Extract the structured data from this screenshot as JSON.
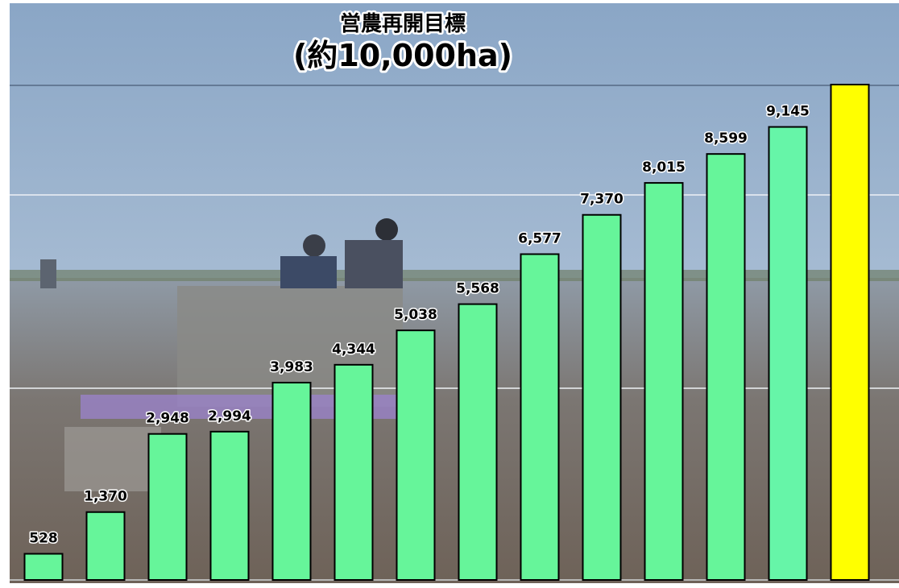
{
  "chart_data": {
    "type": "bar",
    "title": "営農再開目標",
    "subtitle": "(約10,000ha)",
    "categories": [
      null,
      null,
      null,
      null,
      null,
      null,
      null,
      null,
      null,
      null,
      null,
      null,
      null,
      null
    ],
    "values": [
      528,
      1370,
      2948,
      2994,
      3983,
      4344,
      5038,
      5568,
      6577,
      7370,
      8015,
      8599,
      9145,
      10000
    ],
    "value_labels": [
      "528",
      "1,370",
      "2,948",
      "2,994",
      "3,983",
      "4,344",
      "5,038",
      "5,568",
      "6,577",
      "7,370",
      "8,015",
      "8,599",
      "9,145",
      null
    ],
    "colors": [
      "#66f59a",
      "#66f59a",
      "#66f59a",
      "#66f59a",
      "#66f59a",
      "#66f59a",
      "#66f59a",
      "#66f59a",
      "#66f59a",
      "#66f59a",
      "#66f59a",
      "#66f59a",
      "#66f5a8",
      "#ffff00"
    ],
    "ylim": [
      0,
      10000
    ]
  }
}
